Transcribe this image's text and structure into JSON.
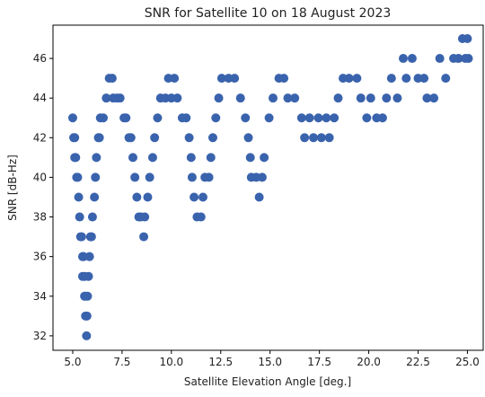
{
  "chart_data": {
    "type": "scatter",
    "title": "SNR for Satellite 10 on 18 August 2023",
    "x_label": "Satellite Elevation Angle [deg.]",
    "y_label": "SNR [dB-Hz]",
    "color": "#3a63ad",
    "xlim": [
      4.0,
      25.8
    ],
    "ylim": [
      31.27,
      47.68
    ],
    "xticks": [
      {
        "value": 5,
        "label": "5.0"
      },
      7.5,
      {
        "value": 10,
        "label": "10.0"
      },
      12.5,
      {
        "value": 15,
        "label": "15.0"
      },
      17.5,
      {
        "value": 20,
        "label": "20.0"
      },
      22.5,
      {
        "value": 25,
        "label": "25.0"
      }
    ],
    "yticks": [
      32,
      34,
      36,
      38,
      40,
      42,
      44,
      46
    ],
    "x": [
      5.0,
      5.05,
      5.1,
      5.1,
      5.15,
      5.2,
      5.25,
      5.3,
      5.35,
      5.4,
      5.45,
      5.5,
      5.5,
      5.55,
      5.6,
      5.6,
      5.65,
      5.65,
      5.7,
      5.72,
      5.75,
      5.8,
      5.85,
      5.9,
      5.95,
      6.0,
      6.1,
      6.15,
      6.2,
      6.3,
      6.35,
      6.4,
      6.55,
      6.7,
      6.85,
      7.0,
      7.05,
      7.25,
      7.4,
      7.6,
      7.7,
      7.85,
      7.95,
      8.05,
      8.15,
      8.25,
      8.35,
      8.45,
      8.6,
      8.65,
      8.8,
      8.9,
      9.05,
      9.15,
      9.3,
      9.45,
      9.7,
      9.85,
      10.0,
      10.15,
      10.3,
      10.55,
      10.75,
      10.9,
      11.0,
      11.05,
      11.15,
      11.3,
      11.5,
      11.6,
      11.7,
      11.9,
      12.0,
      12.1,
      12.25,
      12.4,
      12.55,
      12.9,
      13.2,
      13.5,
      13.75,
      13.9,
      14.0,
      14.05,
      14.3,
      14.45,
      14.6,
      14.7,
      14.95,
      15.15,
      15.45,
      15.7,
      15.9,
      16.25,
      16.6,
      16.75,
      17.0,
      17.2,
      17.45,
      17.6,
      17.85,
      18.0,
      18.25,
      18.45,
      18.7,
      19.0,
      19.4,
      19.6,
      19.9,
      20.1,
      20.4,
      20.7,
      20.9,
      21.15,
      21.45,
      21.75,
      21.9,
      22.2,
      22.5,
      22.8,
      22.95,
      23.3,
      23.6,
      23.9,
      24.3,
      24.55,
      24.75,
      24.9,
      25.0,
      25.05
    ],
    "values": [
      43,
      42,
      42,
      41,
      41,
      40,
      40,
      39,
      38,
      37,
      37,
      36,
      35,
      36,
      35,
      34,
      34,
      33,
      32,
      33,
      34,
      35,
      36,
      37,
      37,
      38,
      39,
      40,
      41,
      42,
      42,
      43,
      43,
      44,
      45,
      45,
      44,
      44,
      44,
      43,
      43,
      42,
      42,
      41,
      40,
      39,
      38,
      38,
      37,
      38,
      39,
      40,
      41,
      42,
      43,
      44,
      44,
      45,
      44,
      45,
      44,
      43,
      43,
      42,
      41,
      40,
      39,
      38,
      38,
      39,
      40,
      40,
      41,
      42,
      43,
      44,
      45,
      45,
      45,
      44,
      43,
      42,
      41,
      40,
      40,
      39,
      40,
      41,
      43,
      44,
      45,
      45,
      44,
      44,
      43,
      42,
      43,
      42,
      43,
      42,
      43,
      42,
      43,
      44,
      45,
      45,
      45,
      44,
      43,
      44,
      43,
      43,
      44,
      45,
      44,
      46,
      45,
      46,
      45,
      45,
      44,
      44,
      46,
      45,
      46,
      46,
      47,
      46,
      47,
      46
    ]
  }
}
